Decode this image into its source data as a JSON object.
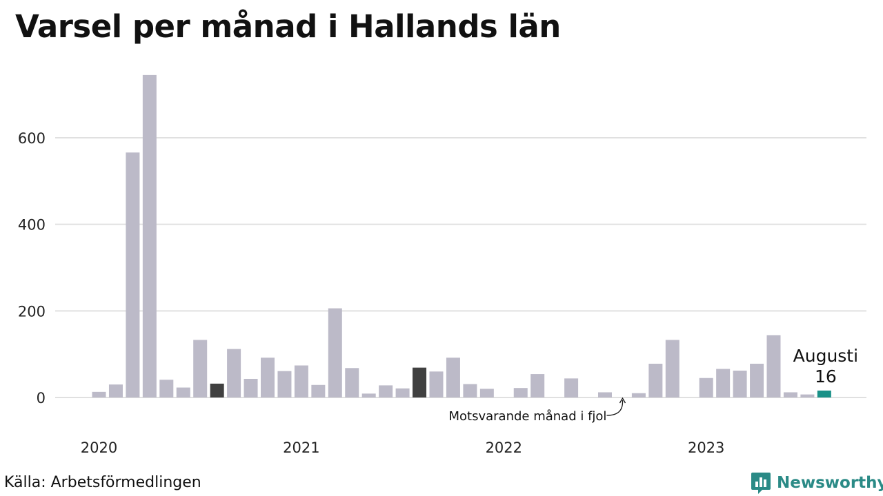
{
  "title": "Varsel per månad i Hallands län",
  "source": "Källa: Arbetsförmedlingen",
  "brand": "Newsworthy",
  "colors": {
    "bar": "#bcbac8",
    "reference_bar": "#404040",
    "highlight_bar": "#1a9188",
    "grid": "#e0e0e0",
    "brand": "#2a8a86"
  },
  "chart_data": {
    "type": "bar",
    "title": "Varsel per månad i Hallands län",
    "x_tick_labels": [
      "2020",
      "2021",
      "2022",
      "2023"
    ],
    "x_tick_start_months": [
      "2020-01",
      "2021-01",
      "2022-01",
      "2023-01"
    ],
    "y_ticks": [
      0,
      200,
      400,
      600
    ],
    "ylim": [
      0,
      750
    ],
    "grid": true,
    "months": [
      "2020-01",
      "2020-02",
      "2020-03",
      "2020-04",
      "2020-05",
      "2020-06",
      "2020-07",
      "2020-08",
      "2020-09",
      "2020-10",
      "2020-11",
      "2020-12",
      "2021-01",
      "2021-02",
      "2021-03",
      "2021-04",
      "2021-05",
      "2021-06",
      "2021-07",
      "2021-08",
      "2021-09",
      "2021-10",
      "2021-11",
      "2021-12",
      "2022-01",
      "2022-02",
      "2022-03",
      "2022-04",
      "2022-05",
      "2022-06",
      "2022-07",
      "2022-08",
      "2022-09",
      "2022-10",
      "2022-11",
      "2022-12",
      "2023-01",
      "2023-02",
      "2023-03",
      "2023-04",
      "2023-05",
      "2023-06",
      "2023-07",
      "2023-08"
    ],
    "values": [
      13,
      30,
      566,
      745,
      41,
      23,
      133,
      32,
      112,
      43,
      92,
      61,
      74,
      29,
      206,
      68,
      9,
      28,
      21,
      69,
      60,
      92,
      31,
      20,
      0,
      22,
      54,
      0,
      44,
      0,
      12,
      0,
      10,
      78,
      133,
      0,
      45,
      66,
      62,
      78,
      144,
      12,
      7,
      16
    ],
    "reference_months": [
      "2020-08",
      "2021-08"
    ],
    "highlight": {
      "month": "2023-08",
      "label": "Augusti",
      "value": "16"
    },
    "annotation": {
      "text": "Motsvarande månad i fjol",
      "month": "2022-08"
    }
  }
}
